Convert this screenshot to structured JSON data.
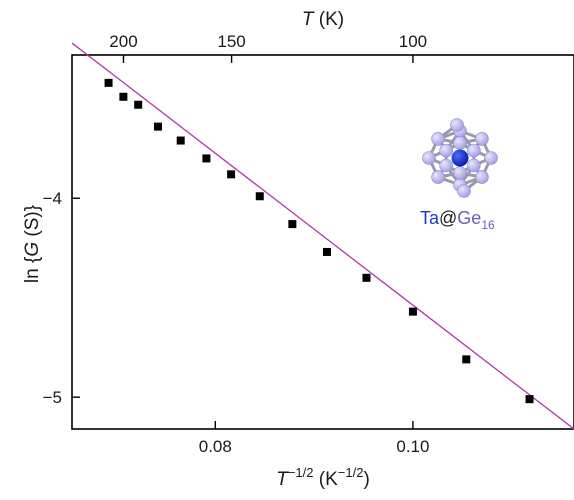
{
  "chart_data": {
    "type": "scatter",
    "bottom_axis": {
      "label_base": "T",
      "label_exp": "−1/2",
      "label_unit_open": " (K",
      "label_unit_exp": "−1/2",
      "label_unit_close": ")",
      "range": [
        0.0655,
        0.1163
      ],
      "ticks": [
        {
          "value": 0.08,
          "label": "0.08"
        },
        {
          "value": 0.1,
          "label": "0.10"
        }
      ]
    },
    "top_axis": {
      "label_var": "T",
      "label_unit": " (K)",
      "ticks": [
        {
          "value": 200,
          "label": "200"
        },
        {
          "value": 150,
          "label": "150"
        },
        {
          "value": 100,
          "label": "100"
        }
      ]
    },
    "left_axis": {
      "label_prefix": "ln {",
      "label_var": "G",
      "label_suffix": " (S)}",
      "range": [
        -5.16,
        -3.28
      ],
      "ticks": [
        {
          "value": -4,
          "label": "−4"
        },
        {
          "value": -5,
          "label": "−5"
        }
      ]
    },
    "series": [
      {
        "marker": "square",
        "color": "#000000",
        "x": [
          0.0692,
          0.0707,
          0.0722,
          0.0742,
          0.0765,
          0.0791,
          0.0816,
          0.0845,
          0.0878,
          0.0913,
          0.0953,
          0.1,
          0.1054,
          0.1118
        ],
        "y": [
          -3.42,
          -3.49,
          -3.53,
          -3.64,
          -3.71,
          -3.8,
          -3.88,
          -3.99,
          -4.13,
          -4.27,
          -4.4,
          -4.57,
          -4.81,
          -5.01
        ]
      }
    ],
    "fit_line": {
      "color": "#b03aa6",
      "points": [
        [
          0.0655,
          -3.22
        ],
        [
          0.1163,
          -5.16
        ]
      ]
    },
    "grid": false,
    "legend": "none",
    "inset": {
      "label_ta": "Ta",
      "label_at": "@",
      "label_ge": "Ge",
      "label_sub": "16",
      "ta_color": "#1a3bc9",
      "ge_color": "#7058c0",
      "atom_color": "#a6a2e4"
    }
  }
}
